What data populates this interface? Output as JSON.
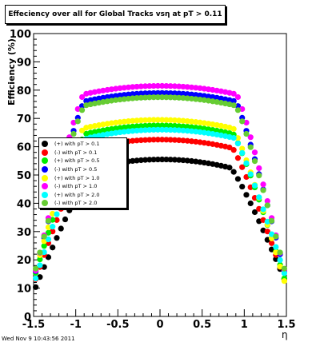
{
  "chart_data": {
    "type": "scatter",
    "title": "Effeciency over all for Global Tracks vsη at pT > 0.11",
    "xlabel": "η",
    "ylabel": "Efficiency (%)",
    "xlim": [
      -1.5,
      1.5
    ],
    "ylim": [
      0,
      100
    ],
    "xticks": [
      "-1.5",
      "-1",
      "-0.5",
      "0",
      "0.5",
      "1",
      "1.5"
    ],
    "yticks": [
      "0",
      "10",
      "20",
      "30",
      "40",
      "50",
      "60",
      "70",
      "80",
      "90",
      "100"
    ],
    "grid": false,
    "legend_position": "left",
    "series": [
      {
        "name": "(+) with pT > 0.1",
        "color": "#000000",
        "plateau": 55.5,
        "edge": 10,
        "knee": 0.82,
        "offset": -0.02
      },
      {
        "name": "(-) with pT > 0.1",
        "color": "#ff0000",
        "plateau": 62.5,
        "edge": 11,
        "knee": 0.86,
        "offset": 0.0
      },
      {
        "name": "(+) with pT > 0.5",
        "color": "#00ee00",
        "plateau": 67.5,
        "edge": 12,
        "knee": 0.88,
        "offset": 0.01
      },
      {
        "name": "(-) with pT > 0.5",
        "color": "#0000ff",
        "plateau": 79.0,
        "edge": 13,
        "knee": 0.9,
        "offset": 0.0
      },
      {
        "name": "(+) with pT > 1.0",
        "color": "#ffff00",
        "plateau": 69.5,
        "edge": 12,
        "knee": 0.89,
        "offset": 0.02
      },
      {
        "name": "(-) with pT > 1.0",
        "color": "#ff00ff",
        "plateau": 81.5,
        "edge": 13,
        "knee": 0.91,
        "offset": 0.0
      },
      {
        "name": "(+) with pT > 2.0",
        "color": "#00ffff",
        "plateau": 66.0,
        "edge": 12,
        "knee": 0.88,
        "offset": -0.01
      },
      {
        "name": "(-) with pT > 2.0",
        "color": "#66cc33",
        "plateau": 77.5,
        "edge": 14,
        "knee": 0.9,
        "offset": 0.0
      }
    ]
  },
  "footer": {
    "timestamp": "Wed Nov  9 10:43:56 2011"
  }
}
